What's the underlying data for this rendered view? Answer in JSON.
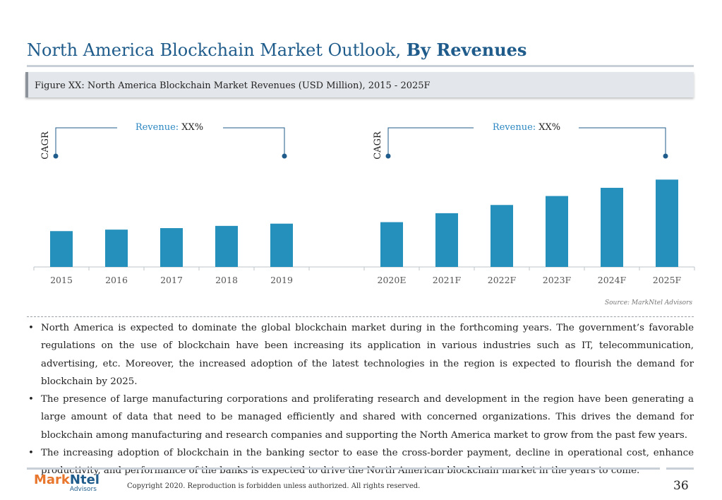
{
  "page": {
    "title_regular": "North America Blockchain Market Outlook,",
    "title_bold": "By Revenues",
    "figure_caption": "Figure XX: North America Blockchain Market Revenues (USD Million), 2015 - 2025F",
    "source": "Source: MarkNtel Advisors",
    "bullets": [
      "North America is expected to dominate the global blockchain market during in the forthcoming years. The government’s favorable regulations on the use of blockchain have been increasing its application in various industries such as IT, telecommunication, advertising, etc. Moreover, the increased adoption of the latest technologies in the region is expected to flourish the demand for blockchain by 2025.",
      "The presence of large manufacturing corporations and proliferating research and development in the region have been generating a large amount of data that need to be managed efficiently and shared with concerned organizations. This drives the demand for blockchain among manufacturing and research companies and supporting the North America market to grow from the past few years.",
      "The increasing adoption of blockchain in the banking sector to ease the cross-border payment, decline in operational cost, enhance productivity, and performance of the banks is expected to drive the North American blockchain market in the years to come."
    ],
    "bullet_symbol": "•",
    "logo_brand_a": "Mark",
    "logo_brand_b": "Ntel",
    "logo_sub": "Advisors",
    "copyright": "Copyright 2020. Reproduction is forbidden unless authorized. All rights reserved.",
    "page_number": "36"
  },
  "chart_data": {
    "type": "bar",
    "title": "Figure XX: North America Blockchain Market Revenues (USD Million), 2015 - 2025F",
    "categories": [
      "2015",
      "2016",
      "2017",
      "2018",
      "2019",
      "2020E",
      "2021F",
      "2022F",
      "2023F",
      "2024F",
      "2025F"
    ],
    "values": [
      48,
      50,
      52,
      55,
      58,
      60,
      72,
      83,
      95,
      106,
      117
    ],
    "ylim": [
      0,
      140
    ],
    "grid": false,
    "legend": "none",
    "bar_color": "#2590bb",
    "annotations": [
      {
        "axis_label": "CAGR",
        "revenue_label": "Revenue:",
        "revenue_value": "XX%",
        "spans": [
          "2015",
          "2019"
        ]
      },
      {
        "axis_label": "CAGR",
        "revenue_label": "Revenue:",
        "revenue_value": "XX%",
        "spans": [
          "2020E",
          "2025F"
        ]
      }
    ]
  }
}
